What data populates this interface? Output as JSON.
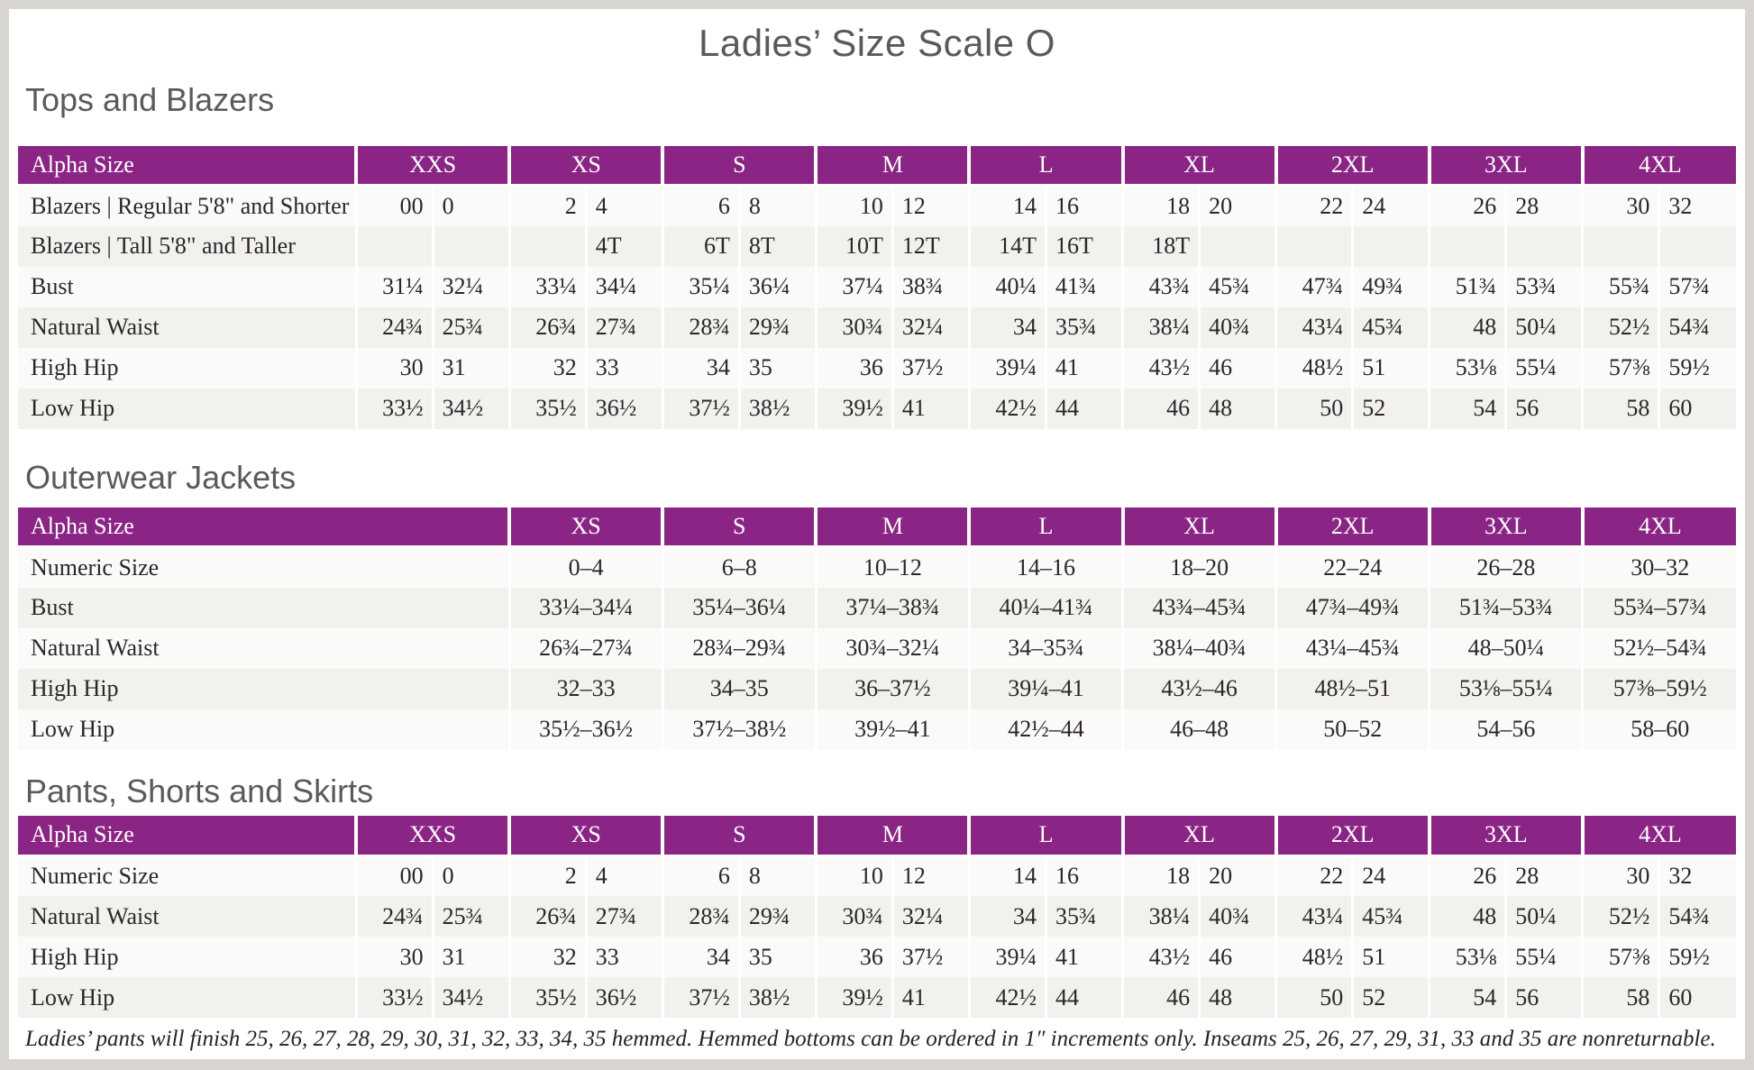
{
  "title": "Ladies’ Size Scale O",
  "colors": {
    "header_purple": "#8b2585",
    "heading_gray": "#595a5c",
    "row_alt_gray": "#f2f1ee",
    "text_dark": "#2b2728"
  },
  "tables": [
    {
      "id": "tops",
      "css_class": "sec-tops",
      "heading": "Tops and Blazers",
      "header_label": "Alpha Size",
      "paired": true,
      "sizes": [
        "XXS",
        "XS",
        "S",
        "M",
        "L",
        "XL",
        "2XL",
        "3XL",
        "4XL"
      ],
      "rows": [
        {
          "label": "Blazers | Regular 5'8\" and Shorter",
          "values": [
            [
              "00",
              "0"
            ],
            [
              "2",
              "4"
            ],
            [
              "6",
              "8"
            ],
            [
              "10",
              "12"
            ],
            [
              "14",
              "16"
            ],
            [
              "18",
              "20"
            ],
            [
              "22",
              "24"
            ],
            [
              "26",
              "28"
            ],
            [
              "30",
              "32"
            ]
          ]
        },
        {
          "label": "Blazers | Tall 5'8\" and Taller",
          "values": [
            [
              "",
              ""
            ],
            [
              "",
              "4T"
            ],
            [
              "6T",
              "8T"
            ],
            [
              "10T",
              "12T"
            ],
            [
              "14T",
              "16T"
            ],
            [
              "18T",
              ""
            ],
            [
              "",
              ""
            ],
            [
              "",
              ""
            ],
            [
              "",
              ""
            ]
          ]
        },
        {
          "label": "Bust",
          "values": [
            [
              "31¼",
              "32¼"
            ],
            [
              "33¼",
              "34¼"
            ],
            [
              "35¼",
              "36¼"
            ],
            [
              "37¼",
              "38¾"
            ],
            [
              "40¼",
              "41¾"
            ],
            [
              "43¾",
              "45¾"
            ],
            [
              "47¾",
              "49¾"
            ],
            [
              "51¾",
              "53¾"
            ],
            [
              "55¾",
              "57¾"
            ]
          ]
        },
        {
          "label": "Natural Waist",
          "values": [
            [
              "24¾",
              "25¾"
            ],
            [
              "26¾",
              "27¾"
            ],
            [
              "28¾",
              "29¾"
            ],
            [
              "30¾",
              "32¼"
            ],
            [
              "34",
              "35¾"
            ],
            [
              "38¼",
              "40¾"
            ],
            [
              "43¼",
              "45¾"
            ],
            [
              "48",
              "50¼"
            ],
            [
              "52½",
              "54¾"
            ]
          ]
        },
        {
          "label": "High Hip",
          "values": [
            [
              "30",
              "31"
            ],
            [
              "32",
              "33"
            ],
            [
              "34",
              "35"
            ],
            [
              "36",
              "37½"
            ],
            [
              "39¼",
              "41"
            ],
            [
              "43½",
              "46"
            ],
            [
              "48½",
              "51"
            ],
            [
              "53⅛",
              "55¼"
            ],
            [
              "57⅜",
              "59½"
            ]
          ]
        },
        {
          "label": "Low Hip",
          "values": [
            [
              "33½",
              "34½"
            ],
            [
              "35½",
              "36½"
            ],
            [
              "37½",
              "38½"
            ],
            [
              "39½",
              "41"
            ],
            [
              "42½",
              "44"
            ],
            [
              "46",
              "48"
            ],
            [
              "50",
              "52"
            ],
            [
              "54",
              "56"
            ],
            [
              "58",
              "60"
            ]
          ]
        }
      ]
    },
    {
      "id": "outerwear",
      "css_class": "sec-outerwear",
      "heading": "Outerwear Jackets",
      "header_label": "Alpha Size",
      "paired": false,
      "sizes": [
        "XS",
        "S",
        "M",
        "L",
        "XL",
        "2XL",
        "3XL",
        "4XL"
      ],
      "rows": [
        {
          "label": "Numeric Size",
          "values": [
            "0–4",
            "6–8",
            "10–12",
            "14–16",
            "18–20",
            "22–24",
            "26–28",
            "30–32"
          ]
        },
        {
          "label": "Bust",
          "values": [
            "33¼–34¼",
            "35¼–36¼",
            "37¼–38¾",
            "40¼–41¾",
            "43¾–45¾",
            "47¾–49¾",
            "51¾–53¾",
            "55¾–57¾"
          ]
        },
        {
          "label": "Natural Waist",
          "values": [
            "26¾–27¾",
            "28¾–29¾",
            "30¾–32¼",
            "34–35¾",
            "38¼–40¾",
            "43¼–45¾",
            "48–50¼",
            "52½–54¾"
          ]
        },
        {
          "label": "High Hip",
          "values": [
            "32–33",
            "34–35",
            "36–37½",
            "39¼–41",
            "43½–46",
            "48½–51",
            "53⅛–55¼",
            "57⅜–59½"
          ]
        },
        {
          "label": "Low Hip",
          "values": [
            "35½–36½",
            "37½–38½",
            "39½–41",
            "42½–44",
            "46–48",
            "50–52",
            "54–56",
            "58–60"
          ]
        }
      ]
    },
    {
      "id": "pants",
      "css_class": "sec-pants",
      "heading": "Pants, Shorts and Skirts",
      "header_label": "Alpha Size",
      "paired": true,
      "sizes": [
        "XXS",
        "XS",
        "S",
        "M",
        "L",
        "XL",
        "2XL",
        "3XL",
        "4XL"
      ],
      "rows": [
        {
          "label": "Numeric Size",
          "values": [
            [
              "00",
              "0"
            ],
            [
              "2",
              "4"
            ],
            [
              "6",
              "8"
            ],
            [
              "10",
              "12"
            ],
            [
              "14",
              "16"
            ],
            [
              "18",
              "20"
            ],
            [
              "22",
              "24"
            ],
            [
              "26",
              "28"
            ],
            [
              "30",
              "32"
            ]
          ]
        },
        {
          "label": "Natural Waist",
          "values": [
            [
              "24¾",
              "25¾"
            ],
            [
              "26¾",
              "27¾"
            ],
            [
              "28¾",
              "29¾"
            ],
            [
              "30¾",
              "32¼"
            ],
            [
              "34",
              "35¾"
            ],
            [
              "38¼",
              "40¾"
            ],
            [
              "43¼",
              "45¾"
            ],
            [
              "48",
              "50¼"
            ],
            [
              "52½",
              "54¾"
            ]
          ]
        },
        {
          "label": "High Hip",
          "values": [
            [
              "30",
              "31"
            ],
            [
              "32",
              "33"
            ],
            [
              "34",
              "35"
            ],
            [
              "36",
              "37½"
            ],
            [
              "39¼",
              "41"
            ],
            [
              "43½",
              "46"
            ],
            [
              "48½",
              "51"
            ],
            [
              "53⅛",
              "55¼"
            ],
            [
              "57⅜",
              "59½"
            ]
          ]
        },
        {
          "label": "Low Hip",
          "values": [
            [
              "33½",
              "34½"
            ],
            [
              "35½",
              "36½"
            ],
            [
              "37½",
              "38½"
            ],
            [
              "39½",
              "41"
            ],
            [
              "42½",
              "44"
            ],
            [
              "46",
              "48"
            ],
            [
              "50",
              "52"
            ],
            [
              "54",
              "56"
            ],
            [
              "58",
              "60"
            ]
          ]
        }
      ]
    }
  ],
  "footnote": "Ladies’ pants will finish 25, 26, 27, 28, 29, 30, 31, 32, 33, 34, 35 hemmed. Hemmed bottoms can be ordered in 1″ increments only. Inseams 25, 26, 27, 29, 31, 33 and 35 are nonreturnable."
}
